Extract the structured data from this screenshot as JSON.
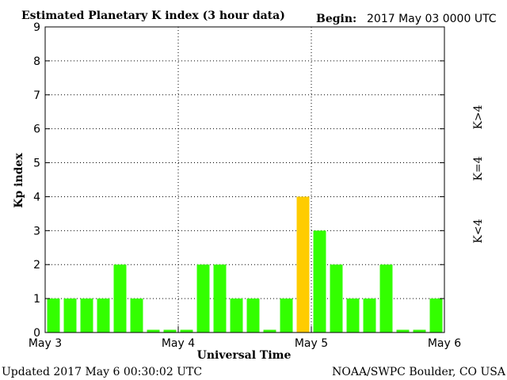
{
  "header": {
    "title": "Estimated Planetary K index (3 hour data)",
    "begin_label": "Begin:",
    "begin_value": "2017 May 03 0000 UTC"
  },
  "footer": {
    "updated": "Updated 2017 May  6 00:30:02 UTC",
    "source": "NOAA/SWPC Boulder, CO USA"
  },
  "legend": [
    {
      "label": "K>4",
      "color": "#ff3300"
    },
    {
      "label": "K=4",
      "color": "#ffcc00"
    },
    {
      "label": "K<4",
      "color": "#33ff00"
    }
  ],
  "chart_data": {
    "type": "bar",
    "title": "Estimated Planetary K index (3 hour data)",
    "xlabel": "Universal Time",
    "ylabel": "Kp index",
    "ylim": [
      0,
      9
    ],
    "yticks": [
      "0",
      "1",
      "2",
      "3",
      "4",
      "5",
      "6",
      "7",
      "8",
      "9"
    ],
    "xticks": [
      "May 3",
      "May 4",
      "May 5",
      "May 6"
    ],
    "bar_interval_hours": 3,
    "grid": true,
    "values": [
      1,
      1,
      1,
      1,
      2,
      1,
      0,
      0,
      0,
      2,
      2,
      1,
      1,
      0,
      1,
      4,
      3,
      2,
      1,
      1,
      2,
      0,
      0,
      1
    ],
    "colors": {
      "below": "#33ff00",
      "equal": "#ffcc00",
      "above": "#ff3300"
    }
  }
}
